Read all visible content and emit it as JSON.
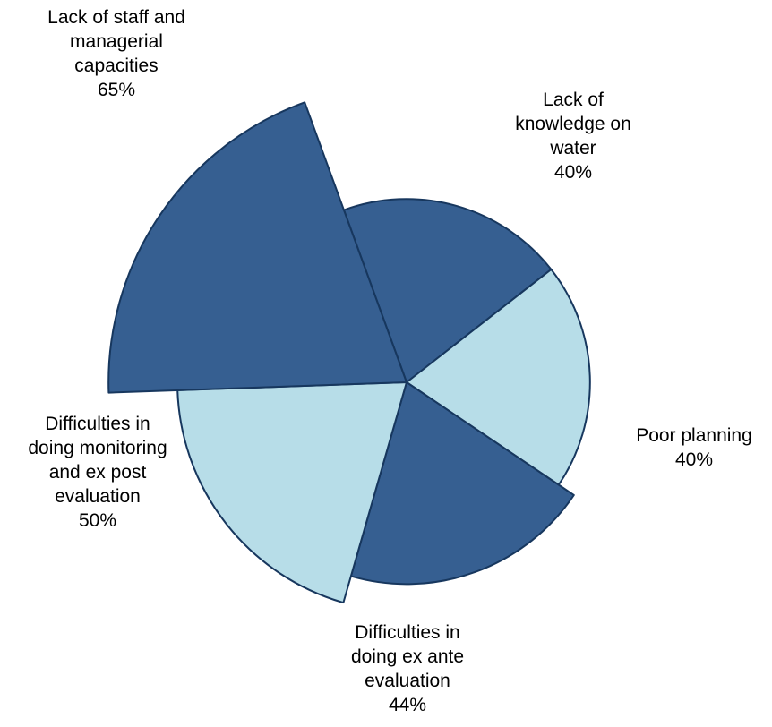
{
  "chart_data": {
    "type": "polar-area",
    "title": "",
    "categories": [
      "Lack of knowledge on water",
      "Poor planning",
      "Difficulties in doing ex ante evaluation",
      "Difficulties in doing monitoring and ex post evaluation",
      "Lack of staff and managerial capacities"
    ],
    "values": [
      40,
      40,
      44,
      50,
      65
    ],
    "value_labels": [
      "40%",
      "40%",
      "44%",
      "50%",
      "65%"
    ],
    "label_lines": [
      [
        "Lack of",
        "knowledge on",
        "water"
      ],
      [
        "Poor planning"
      ],
      [
        "Difficulties in",
        "doing ex ante",
        "evaluation"
      ],
      [
        "Difficulties in",
        "doing monitoring",
        "and ex post",
        "evaluation"
      ],
      [
        "Lack of staff and",
        "managerial",
        "capacities"
      ]
    ],
    "colors": [
      "#365f91",
      "#b7dde8",
      "#365f91",
      "#b7dde8",
      "#365f91"
    ],
    "outline_color": "#17375e"
  }
}
